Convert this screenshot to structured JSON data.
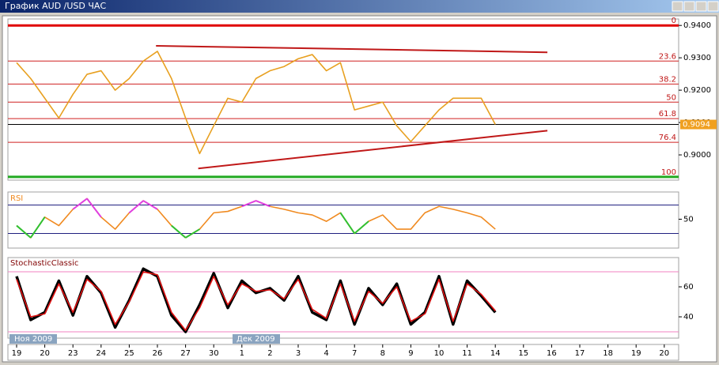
{
  "window_title": "График AUD /USD  ЧАС",
  "chart_data": [
    {
      "type": "line",
      "name": "price",
      "series": [
        {
          "color": "#e8a020",
          "values": [
            0.9285,
            0.9236,
            0.9175,
            0.9114,
            0.9187,
            0.9249,
            0.926,
            0.92,
            0.9236,
            0.929,
            0.932,
            0.9236,
            0.9114,
            0.9004,
            0.909,
            0.9175,
            0.9163,
            0.9236,
            0.926,
            0.9273,
            0.9297,
            0.931,
            0.926,
            0.9285,
            0.9139,
            0.9151,
            0.9163,
            0.909,
            0.9041,
            0.909,
            0.9139,
            0.9175,
            0.9175,
            0.9175,
            0.9094,
            null,
            null,
            null,
            null,
            null,
            null,
            null,
            null,
            null,
            null,
            null,
            null,
            null
          ]
        }
      ],
      "ylim": [
        0.8922,
        0.942
      ],
      "yticks": [
        {
          "value": 0.94,
          "label": "0.9400"
        },
        {
          "value": 0.93,
          "label": "0.9300"
        },
        {
          "value": 0.92,
          "label": "0.9200"
        },
        {
          "value": 0.91,
          "label": "0.9100"
        },
        {
          "value": 0.9,
          "label": "0.9000"
        }
      ],
      "fib_levels": [
        {
          "label": "0",
          "value": 0.94,
          "color": "#e00000"
        },
        {
          "label": "23.6",
          "value": 0.929,
          "color": "#d02020"
        },
        {
          "label": "38.2",
          "value": 0.9219,
          "color": "#d02020"
        },
        {
          "label": "50",
          "value": 0.9163,
          "color": "#d02020"
        },
        {
          "label": "61.8",
          "value": 0.9112,
          "color": "#d02020"
        },
        {
          "label": "76.4",
          "value": 0.9039,
          "color": "#d02020"
        },
        {
          "label": "100",
          "value": 0.8932,
          "color": "#22aa22"
        }
      ],
      "trendlines": [
        {
          "from": [
            9.9,
            0.9337
          ],
          "to": [
            37.7,
            0.9317
          ],
          "color": "#c01818"
        },
        {
          "from": [
            12.9,
            0.8958
          ],
          "to": [
            37.7,
            0.9075
          ],
          "color": "#c01818"
        }
      ],
      "current_price": 0.9094,
      "current_color": "#f0a020"
    },
    {
      "type": "line",
      "name": "rsi",
      "title": "RSI",
      "series": [
        {
          "color": "#f08a20",
          "overbought_color": "#e040e0",
          "oversold_color": "#30c030",
          "values": [
            41,
            24,
            53,
            41,
            64,
            79,
            53,
            36,
            59,
            76,
            64,
            41,
            24,
            36,
            59,
            61,
            68,
            76,
            68,
            64,
            59,
            56,
            47,
            59,
            30,
            47,
            56,
            36,
            36,
            59,
            68,
            64,
            59,
            53,
            36,
            null,
            null,
            null,
            null,
            null,
            null,
            null,
            null,
            null,
            null,
            null,
            null,
            null
          ]
        }
      ],
      "ylim": [
        9.4,
        88.3
      ],
      "yticks": [
        50
      ],
      "levels": [
        30,
        70
      ],
      "level_color": "#202080"
    },
    {
      "type": "line",
      "name": "stochastic",
      "title": "StochasticClassic",
      "series": [
        {
          "color": "#000000",
          "values": [
            67,
            38,
            43,
            64,
            41,
            67,
            56,
            33,
            51,
            72,
            67,
            41,
            30,
            48,
            69,
            46,
            64,
            56,
            59,
            51,
            67,
            43,
            38,
            64,
            35,
            59,
            48,
            62,
            35,
            43,
            67,
            35,
            64,
            54,
            43,
            null,
            null,
            null,
            null,
            null,
            null,
            null,
            null,
            null,
            null,
            null,
            null,
            null
          ]
        },
        {
          "color": "#e01010",
          "values": [
            65,
            40,
            42,
            62,
            43,
            65,
            57,
            35,
            50,
            70,
            68,
            43,
            31,
            46,
            67,
            48,
            62,
            57,
            58,
            52,
            65,
            45,
            39,
            62,
            37,
            57,
            49,
            60,
            37,
            42,
            65,
            37,
            62,
            55,
            44,
            null,
            null,
            null,
            null,
            null,
            null,
            null,
            null,
            null,
            null,
            null,
            null,
            null
          ]
        }
      ],
      "ylim": [
        25.8,
        79.5
      ],
      "yticks": [
        60,
        40
      ],
      "levels": [
        30,
        70
      ],
      "level_color": "#f080c0",
      "categories": [
        "19",
        null,
        "20",
        null,
        "23",
        null,
        "24",
        null,
        "25",
        null,
        "26",
        null,
        "27",
        null,
        "30",
        null,
        "1",
        null,
        "2",
        null,
        "3",
        null,
        "4",
        null,
        "7",
        null,
        "8",
        null,
        "9",
        null,
        "10",
        null,
        "11",
        null,
        "14",
        null,
        "15",
        null,
        "16",
        null,
        "17",
        null,
        "18",
        null,
        "19",
        null,
        "20",
        null
      ],
      "month_labels": [
        "Ноя 2009",
        "Дек 2009"
      ]
    }
  ]
}
